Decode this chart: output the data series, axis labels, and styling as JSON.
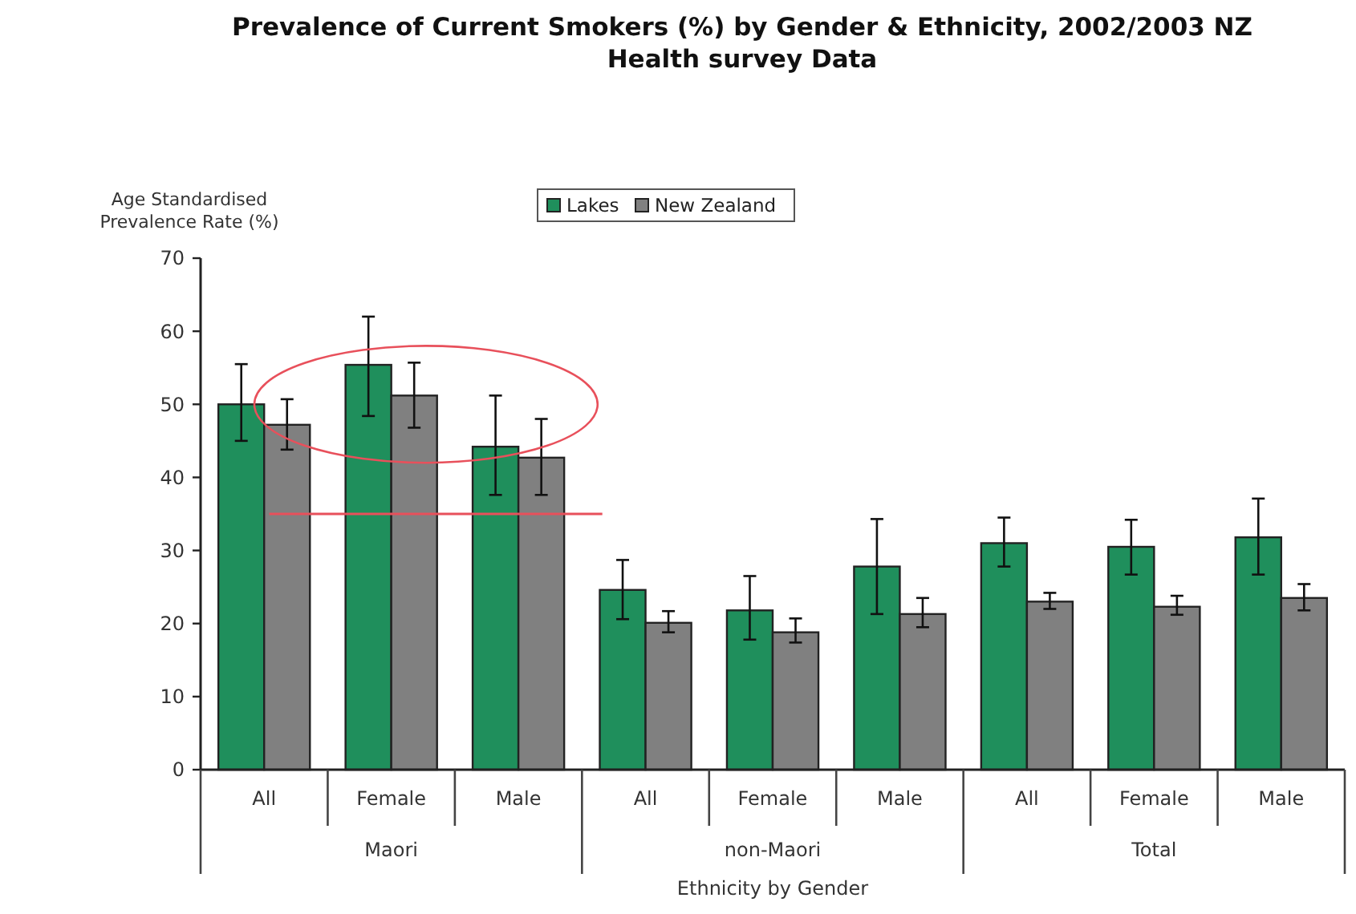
{
  "chart_data": {
    "type": "bar",
    "title": "Prevalence of Current Smokers (%) by Gender & Ethnicity, 2002/2003 NZ Health survey Data",
    "ylabel": "Age Standardised Prevalence Rate (%)",
    "xlabel": "Ethnicity by Gender",
    "categories": [
      "All",
      "Female",
      "Male",
      "All",
      "Female",
      "Male",
      "All",
      "Female",
      "Male"
    ],
    "annotations": [
      "Maori",
      "non-Maori",
      "Total"
    ],
    "series": [
      {
        "name": "Lakes",
        "color": "#1f8f5c",
        "values": [
          50,
          55.4,
          44.2,
          24.6,
          21.8,
          27.8,
          31,
          30.5,
          31.8
        ],
        "errors": [
          [
            45,
            55.5
          ],
          [
            48.4,
            62
          ],
          [
            37.6,
            51.2
          ],
          [
            20.6,
            28.7
          ],
          [
            17.8,
            26.5
          ],
          [
            21.3,
            34.3
          ],
          [
            27.8,
            34.5
          ],
          [
            26.7,
            34.2
          ],
          [
            26.7,
            37.1
          ]
        ]
      },
      {
        "name": "New Zealand",
        "color": "#808080",
        "values": [
          47.2,
          51.2,
          42.7,
          20.1,
          18.8,
          21.3,
          23,
          22.3,
          23.5
        ],
        "errors": [
          [
            43.8,
            50.7
          ],
          [
            46.8,
            55.7
          ],
          [
            37.6,
            48
          ],
          [
            18.8,
            21.7
          ],
          [
            17.4,
            20.7
          ],
          [
            19.5,
            23.5
          ],
          [
            22,
            24.2
          ],
          [
            21.2,
            23.8
          ],
          [
            21.8,
            25.4
          ]
        ]
      }
    ],
    "ylim": [
      0,
      70
    ],
    "yticks": [
      0,
      10,
      20,
      30,
      40,
      50,
      60,
      70
    ],
    "grid": false,
    "legend": "top",
    "ref_lines": [
      {
        "axis": "y",
        "value": 35,
        "color": "#e8505b"
      }
    ]
  }
}
